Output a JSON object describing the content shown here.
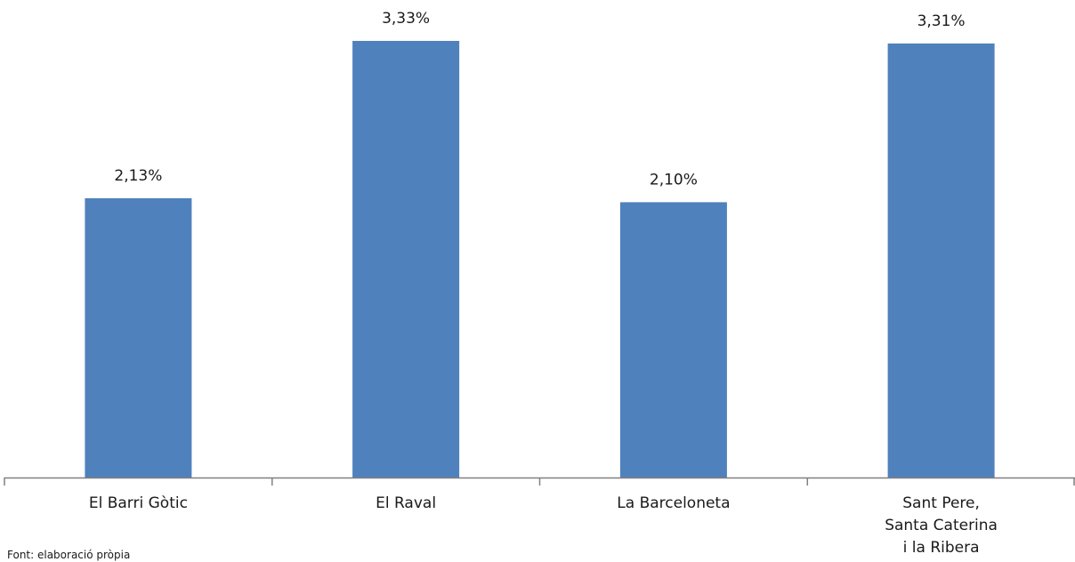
{
  "chart_data": {
    "type": "bar",
    "categories": [
      [
        "El Barri Gòtic"
      ],
      [
        "El Raval"
      ],
      [
        "La Barceloneta"
      ],
      [
        "Sant Pere,",
        "Santa Caterina",
        "i la Ribera"
      ]
    ],
    "values": [
      2.13,
      3.33,
      2.1,
      3.31
    ],
    "data_labels": [
      "2,13%",
      "3,33%",
      "2,10%",
      "3,31%"
    ],
    "title": "",
    "xlabel": "",
    "ylabel": "",
    "ylim": [
      0,
      3.33
    ],
    "grid": false,
    "legend": "none",
    "bar_color": "#4f81bd",
    "axis_color": "#808080"
  },
  "source_note": "Font: elaboració pròpia"
}
